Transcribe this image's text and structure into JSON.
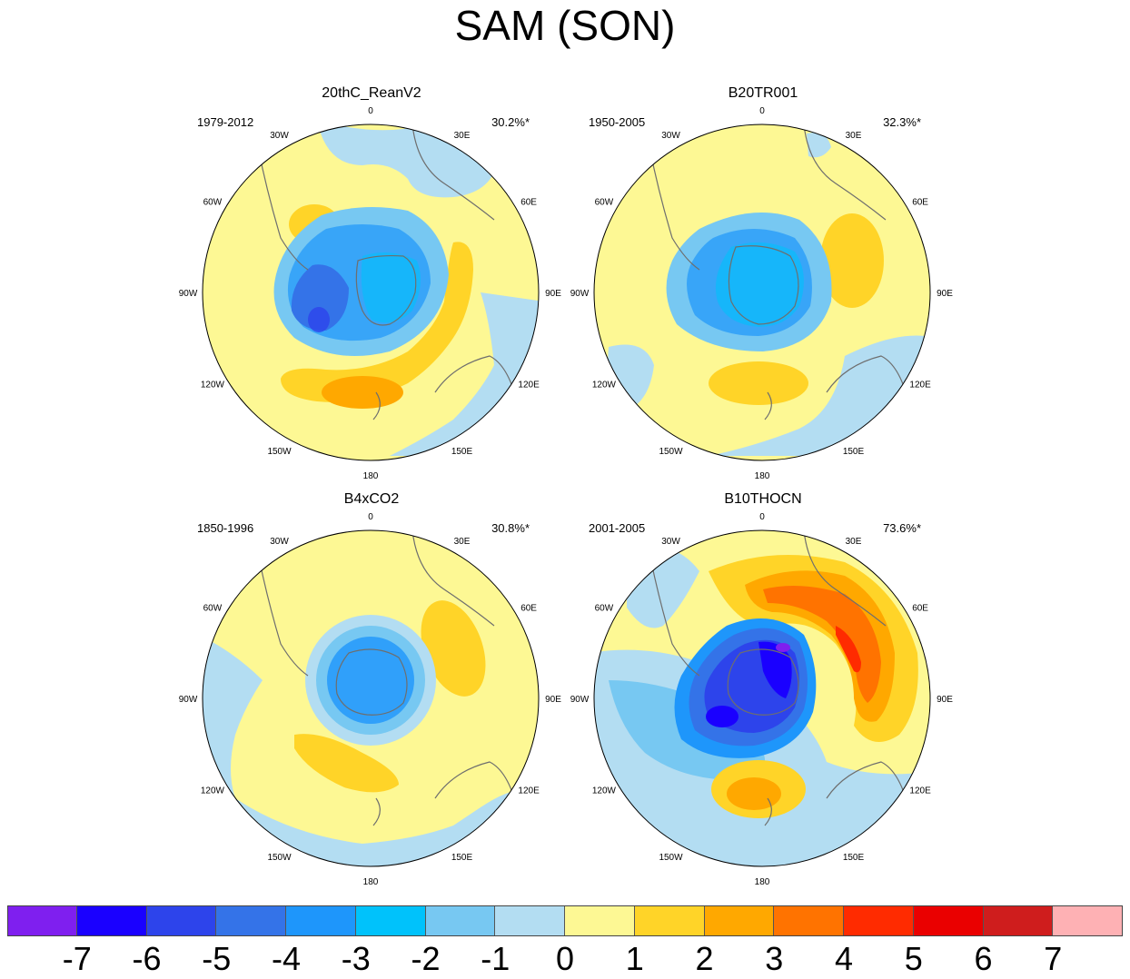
{
  "title": "SAM (SON)",
  "panels": [
    {
      "title": "20thC_ReanV2",
      "years": "1979-2012",
      "variance": "30.2%*"
    },
    {
      "title": "B20TR001",
      "years": "1950-2005",
      "variance": "32.3%*"
    },
    {
      "title": "B4xCO2",
      "years": "1850-1996",
      "variance": "30.8%*"
    },
    {
      "title": "B10THOCN",
      "years": "2001-2005",
      "variance": "73.6%*"
    }
  ],
  "longitude_labels": [
    "0",
    "30E",
    "60E",
    "90E",
    "120E",
    "150E",
    "180",
    "150W",
    "120W",
    "90W",
    "60W",
    "30W"
  ],
  "colorbar": {
    "labels": [
      "-7",
      "-6",
      "-5",
      "-4",
      "-3",
      "-2",
      "-1",
      "0",
      "1",
      "2",
      "3",
      "4",
      "5",
      "6",
      "7"
    ],
    "colors": [
      "#7f1fef",
      "#1a00ff",
      "#2d44eb",
      "#3473e8",
      "#1e96fb",
      "#00c2fb",
      "#77c8f2",
      "#b3ddf2",
      "#fdf894",
      "#ffd428",
      "#ffa800",
      "#ff7300",
      "#ff2b00",
      "#ea0000",
      "#cf1d1d",
      "#feb1b4"
    ]
  },
  "colors": {
    "land_outline": "#6e6e6e",
    "frame": "#000000"
  }
}
